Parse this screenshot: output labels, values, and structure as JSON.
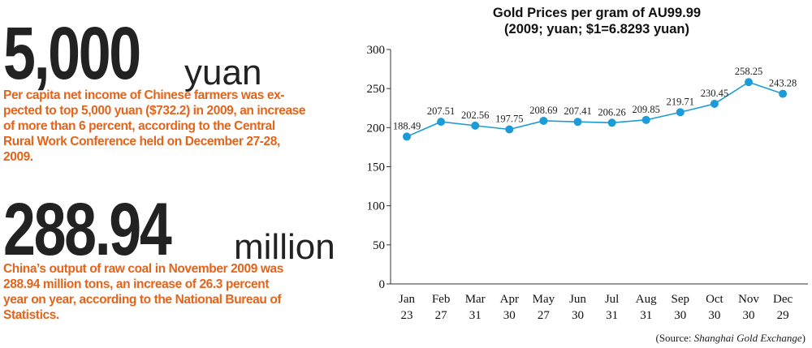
{
  "stats": [
    {
      "number": "5,000",
      "unit": "yuan",
      "lines": [
        "Per capita net income of Chinese farmers was ex-",
        "pected to top 5,000 yuan ($732.2) in 2009, an increase",
        "of more than 6 percent, according to the Central",
        "Rural Work Conference held on December 27-28,",
        "2009."
      ]
    },
    {
      "number": "288.94",
      "unit": "million",
      "lines": [
        "China’s output of raw coal in November 2009 was",
        "288.94 million tons, an increase of 26.3 percent",
        "year on year, according to the National Bureau of",
        "Statistics."
      ]
    }
  ],
  "colors": {
    "accent_text": "#e3641a",
    "line": "#1b9bd8",
    "marker": "#1b9bd8"
  },
  "chart_data": {
    "type": "line",
    "title": "Gold Prices per gram of AU99.99",
    "subtitle": "(2009; yuan; $1=6.8293 yuan)",
    "categories": [
      [
        "Jan",
        "23"
      ],
      [
        "Feb",
        "27"
      ],
      [
        "Mar",
        "31"
      ],
      [
        "Apr",
        "30"
      ],
      [
        "May",
        "27"
      ],
      [
        "Jun",
        "30"
      ],
      [
        "Jul",
        "31"
      ],
      [
        "Aug",
        "31"
      ],
      [
        "Sep",
        "30"
      ],
      [
        "Oct",
        "30"
      ],
      [
        "Nov",
        "30"
      ],
      [
        "Dec",
        "29"
      ]
    ],
    "values": [
      188.49,
      207.51,
      202.56,
      197.75,
      208.69,
      207.41,
      206.26,
      209.85,
      219.71,
      230.45,
      258.25,
      243.28
    ],
    "data_labels": [
      "188.49",
      "207.51",
      "202.56",
      "197.75",
      "208.69",
      "207.41",
      "206.26",
      "209.85",
      "219.71",
      "230.45",
      "258.25",
      "243.28"
    ],
    "ylim": [
      0,
      300
    ],
    "yticks": [
      "0",
      "50",
      "100",
      "150",
      "200",
      "250",
      "300"
    ],
    "ytick_values": [
      0,
      50,
      100,
      150,
      200,
      250,
      300
    ],
    "grid": false,
    "source_prefix": "(Source: ",
    "source_name": "Shanghai Gold Exchange",
    "source_suffix": ")"
  }
}
